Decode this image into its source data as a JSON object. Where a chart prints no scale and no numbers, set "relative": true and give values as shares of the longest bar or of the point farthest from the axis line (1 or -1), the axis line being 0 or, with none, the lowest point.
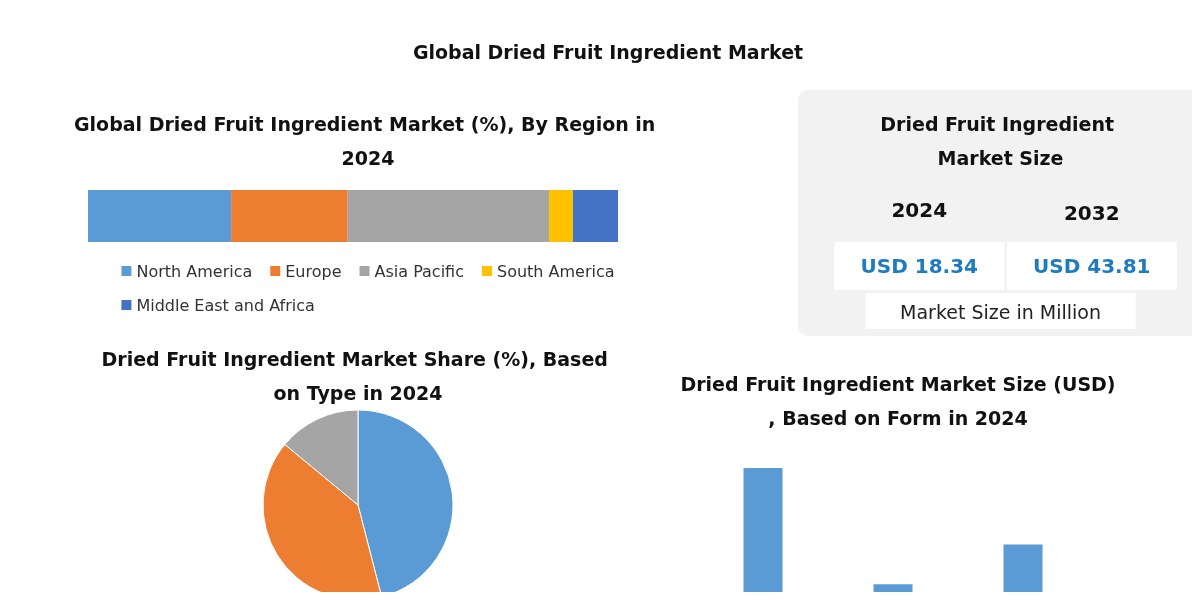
{
  "chart_data": [
    {
      "type": "other",
      "title": "Global Dried Fruit Ingredient Market"
    },
    {
      "type": "bar",
      "title": "Global Dried Fruit Ingredient Market (%), By Region in 2024",
      "orientation": "horizontal",
      "stacked": true,
      "relative": true,
      "categories": [
        null
      ],
      "legend": "bottom",
      "series": [
        {
          "name": "North America",
          "color": "#5b9bd5",
          "values": [
            0.27
          ]
        },
        {
          "name": "Europe",
          "color": "#ed7d31",
          "values": [
            0.22
          ]
        },
        {
          "name": "Asia Pacific",
          "color": "#a5a5a5",
          "values": [
            0.38
          ]
        },
        {
          "name": "South America",
          "color": "#ffc000",
          "values": [
            0.045
          ]
        },
        {
          "name": "Middle East and Africa",
          "color": "#4472c4",
          "values": [
            0.085
          ]
        }
      ]
    },
    {
      "type": "other",
      "title": "Dried Fruit Ingredient Market Size",
      "categories": [
        "2024",
        "2032"
      ],
      "values": [
        18.34,
        43.81
      ],
      "value_labels": [
        "USD 18.34",
        "USD 43.81"
      ],
      "annotations": [
        "Market Size in Million"
      ]
    },
    {
      "type": "pie",
      "title": "Dried Fruit Ingredient Market Share (%), Based on Type in 2024",
      "categories": [
        null,
        null,
        null
      ],
      "values": [
        46,
        40,
        14
      ],
      "colors": [
        "#5b9bd5",
        "#ed7d31",
        "#a5a5a5"
      ]
    },
    {
      "type": "bar",
      "title": "Dried Fruit Ingredient Market Size (USD), Based on Form in 2024",
      "relative": true,
      "categories": [
        null,
        null,
        null
      ],
      "values": [
        1,
        0.12,
        0.42
      ],
      "color": "#5b9bd5"
    }
  ]
}
